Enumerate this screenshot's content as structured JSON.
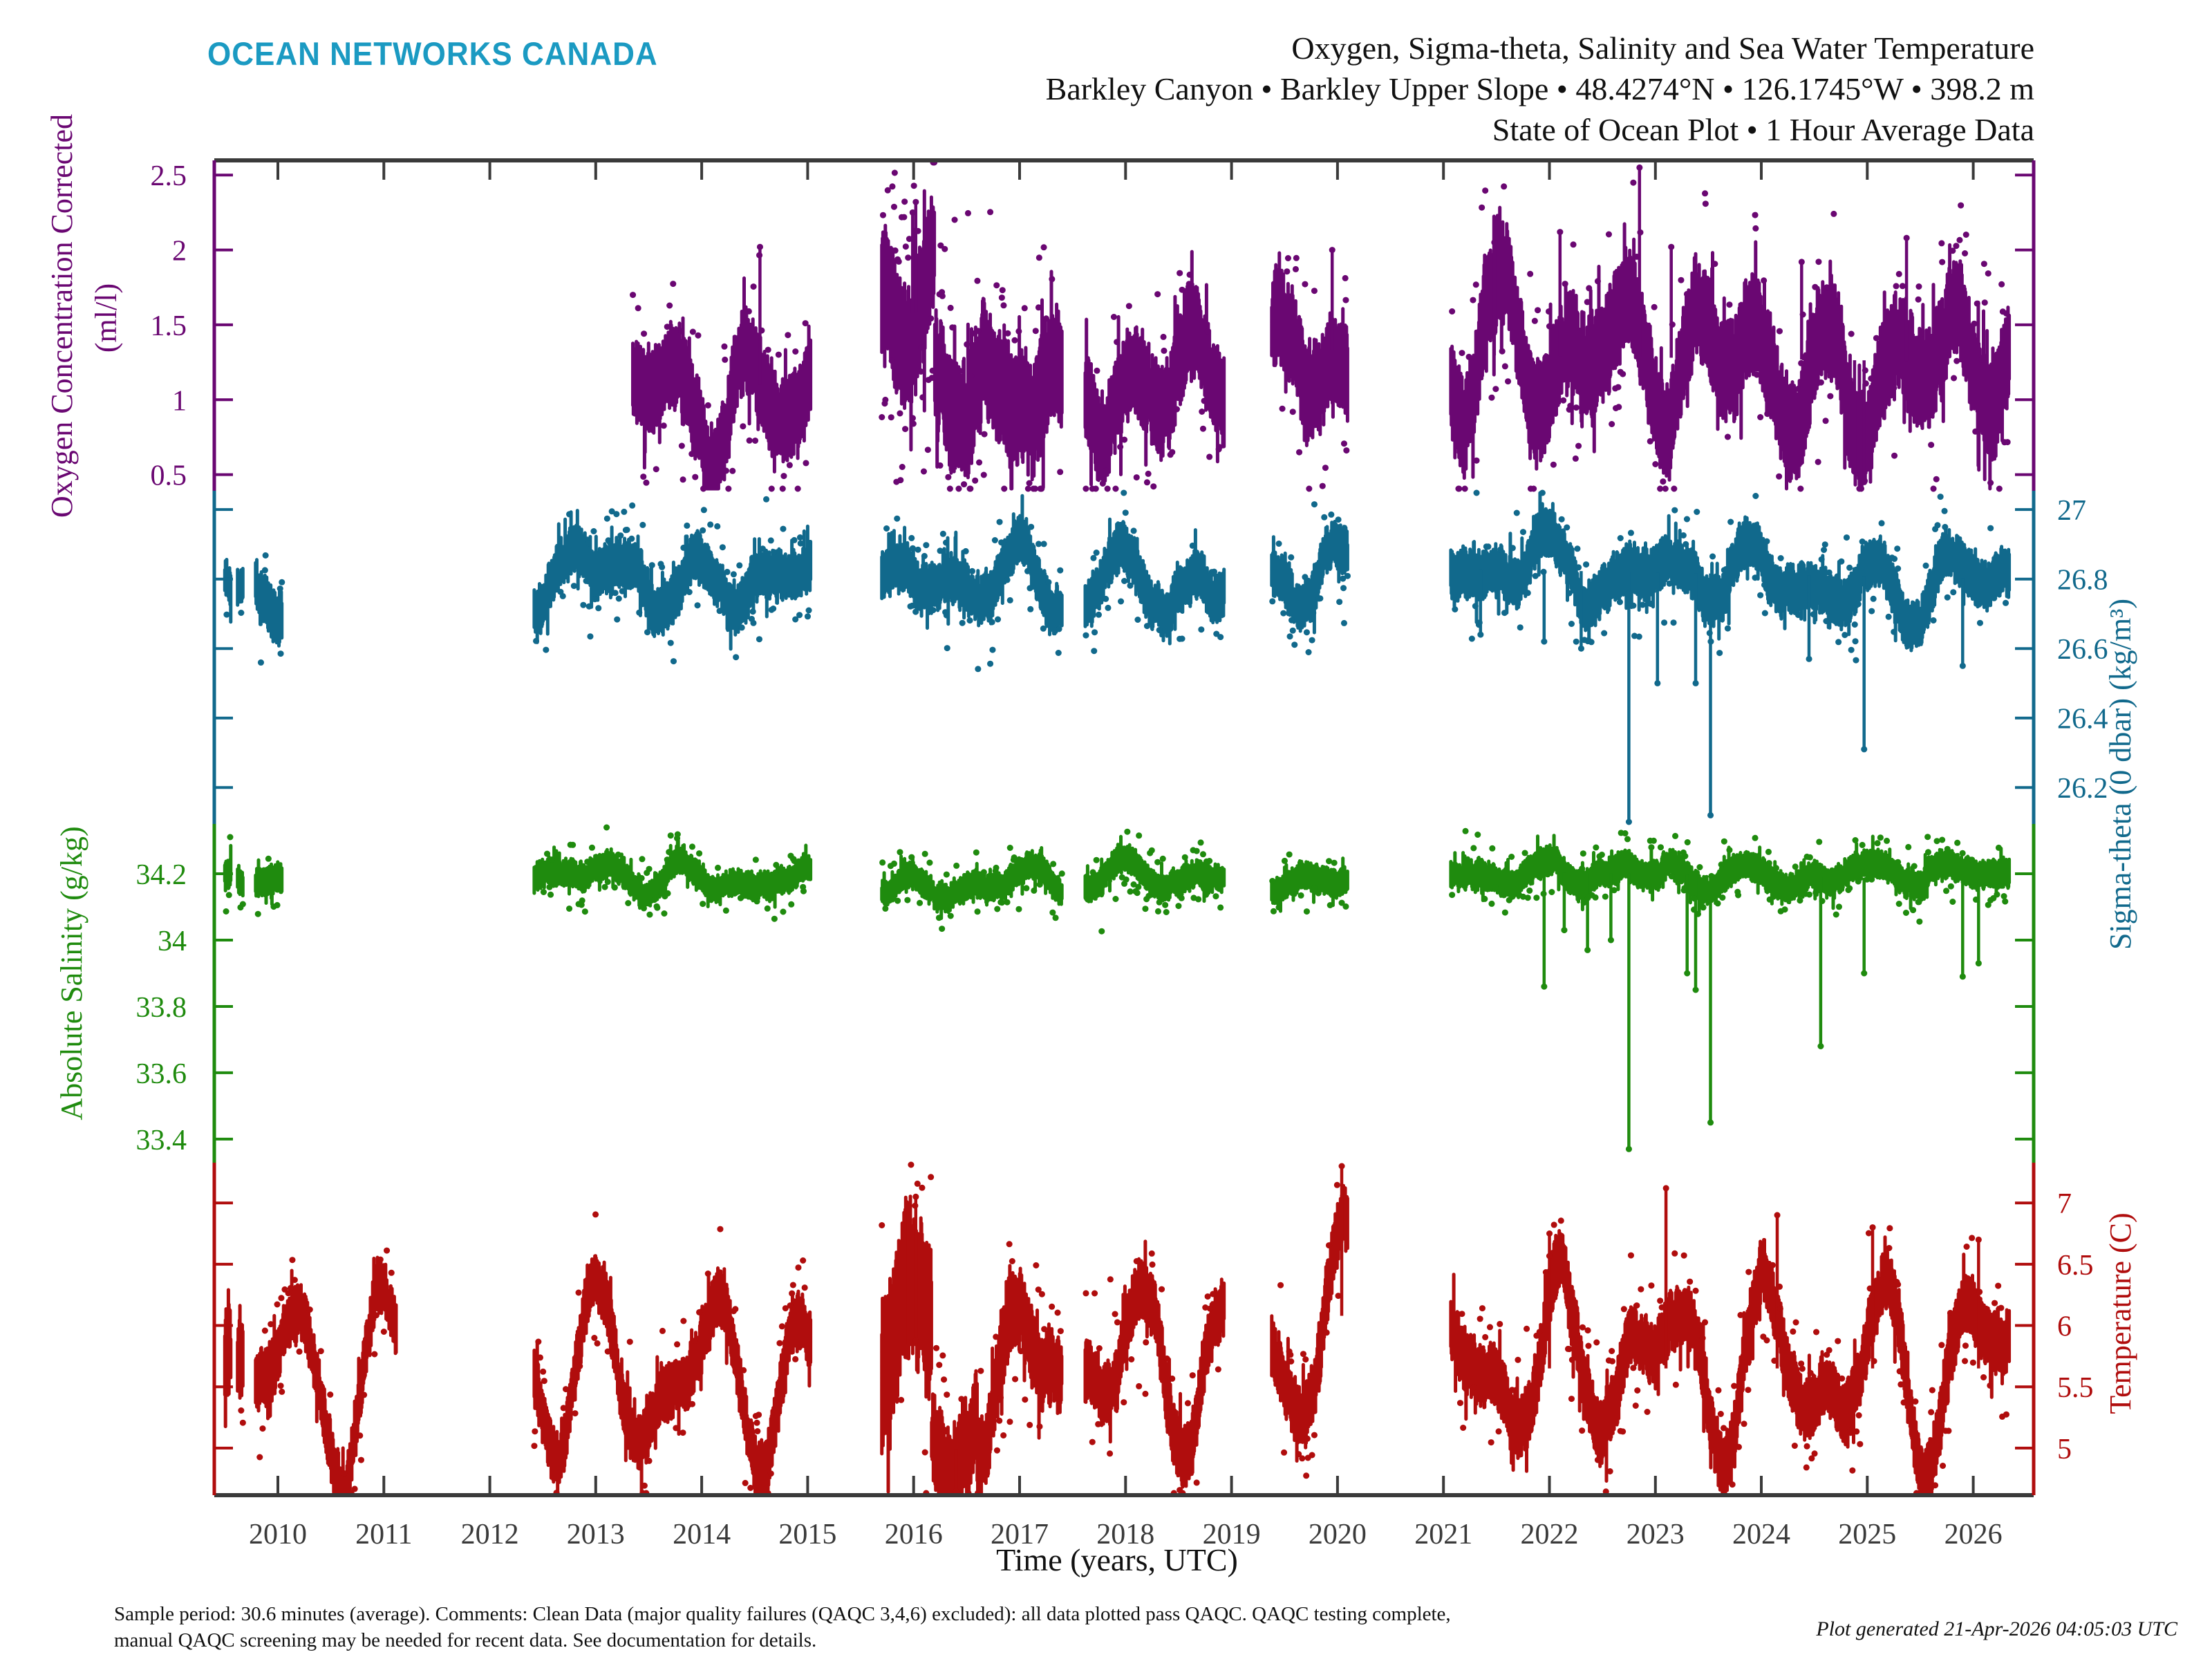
{
  "logo": "OCEAN NETWORKS CANADA",
  "title": {
    "line1": "Oxygen, Sigma-theta, Salinity and Sea Water Temperature",
    "line2": "Barkley Canyon • Barkley Upper Slope • 48.4274°N • 126.1745°W • 398.2 m",
    "line3": "State of Ocean Plot • 1 Hour Average Data"
  },
  "footnote": {
    "line1": "Sample period: 30.6 minutes (average). Comments: Clean Data (major quality failures (QAQC 3,4,6) excluded): all data plotted pass QAQC. QAQC testing complete,",
    "line2": "manual QAQC screening may be needed for recent data. See documentation for details.",
    "generated": "Plot generated 21-Apr-2026 04:05:03 UTC"
  },
  "chart_data": {
    "type": "scatter",
    "title": "Oxygen, Sigma-theta, Salinity and Sea Water Temperature",
    "xlabel": "Time (years, UTC)",
    "x_range": [
      2009.4,
      2026.57
    ],
    "x_ticks": [
      2010,
      2011,
      2012,
      2013,
      2014,
      2015,
      2016,
      2017,
      2018,
      2019,
      2020,
      2021,
      2022,
      2023,
      2024,
      2025,
      2026
    ],
    "grid": false,
    "axis_frame_color": "#3a3a3a",
    "series": [
      {
        "id": "oxygen",
        "label": "Oxygen Concentration Corrected",
        "units_label": "(ml/l)",
        "side": "left",
        "color": "#6a0772",
        "ticks": [
          2.5,
          2,
          1.5,
          1,
          0.5
        ],
        "value_range": [
          0.392,
          2.598
        ],
        "seed": 11,
        "segments": [
          {
            "t0": 2013.35,
            "t1": 2015.03,
            "base": 1.1,
            "base2": 1.1,
            "seas": 0.15,
            "ph": 0.45,
            "wob": 0.2,
            "spread": 0.22
          },
          {
            "t0": 2015.7,
            "t1": 2016.2,
            "base": 1.52,
            "base2": 1.62,
            "seas": 0.0,
            "ph": 0.0,
            "wob": 0.25,
            "spread": 0.33,
            "fringe": 0.4
          },
          {
            "t0": 2016.2,
            "t1": 2017.4,
            "base": 1.25,
            "base2": 0.95,
            "seas": 0.1,
            "ph": 0.45,
            "wob": 0.18,
            "spread": 0.3,
            "fringe": 0.25
          },
          {
            "t0": 2017.62,
            "t1": 2018.93,
            "base": 1.05,
            "base2": 1.1,
            "seas": 0.12,
            "ph": 0.45,
            "wob": 0.18,
            "spread": 0.24
          },
          {
            "t0": 2019.38,
            "t1": 2020.1,
            "base": 1.25,
            "base2": 1.35,
            "seas": 0.15,
            "ph": 0.45,
            "wob": 0.2,
            "spread": 0.26
          },
          {
            "t0": 2021.07,
            "t1": 2026.34,
            "base": 1.3,
            "base2": 1.25,
            "seas": 0.14,
            "ph": 0.45,
            "wob": 0.25,
            "spread": 0.26
          }
        ],
        "spikes": [
          {
            "t": 2022.85,
            "v": 2.55
          },
          {
            "t": 2022.1,
            "v": 2.12
          },
          {
            "t": 2021.48,
            "v": 2.05
          },
          {
            "t": 2023.15,
            "v": 2.02
          },
          {
            "t": 2025.37,
            "v": 2.08
          },
          {
            "t": 2024.38,
            "v": 1.92
          },
          {
            "t": 2019.95,
            "v": 2.0
          },
          {
            "t": 2016.02,
            "v": 2.32
          },
          {
            "t": 2015.99,
            "v": 2.25
          },
          {
            "t": 2014.55,
            "v": 2.02
          },
          {
            "t": 2024.88,
            "v": 0.52
          },
          {
            "t": 2024.97,
            "v": 0.45
          }
        ]
      },
      {
        "id": "sigma_theta",
        "label": "Sigma-theta (0 dbar) (kg/m³)",
        "units_label": "",
        "side": "right",
        "color": "#11698c",
        "ticks": [
          27,
          26.8,
          26.6,
          26.4,
          26.2
        ],
        "value_range": [
          26.095,
          27.054
        ],
        "seed": 22,
        "segments": [
          {
            "t0": 2009.5,
            "t1": 2009.56,
            "base": 26.8,
            "spread": 0.05
          },
          {
            "t0": 2009.62,
            "t1": 2009.67,
            "base": 26.78,
            "spread": 0.04
          },
          {
            "t0": 2009.79,
            "t1": 2010.04,
            "base": 26.8,
            "base2": 26.72,
            "wob": 0.04,
            "spread": 0.06
          },
          {
            "t0": 2012.42,
            "t1": 2015.03,
            "base": 26.8,
            "seas": 0.045,
            "ph": 0.9,
            "wob": 0.05,
            "spread": 0.055
          },
          {
            "t0": 2015.7,
            "t1": 2017.4,
            "base": 26.78,
            "base2": 26.8,
            "seas": 0.05,
            "ph": 0.9,
            "wob": 0.05,
            "spread": 0.055
          },
          {
            "t0": 2017.62,
            "t1": 2018.93,
            "base": 26.8,
            "seas": 0.045,
            "ph": 0.9,
            "wob": 0.05,
            "spread": 0.055
          },
          {
            "t0": 2019.38,
            "t1": 2020.1,
            "base": 26.81,
            "seas": 0.045,
            "ph": 0.9,
            "wob": 0.05,
            "spread": 0.055
          },
          {
            "t0": 2021.07,
            "t1": 2026.34,
            "base": 26.83,
            "base2": 26.8,
            "seas": 0.05,
            "ph": 0.9,
            "wob": 0.05,
            "spread": 0.055
          }
        ],
        "spikes": [
          {
            "t": 2021.35,
            "v": 26.64
          },
          {
            "t": 2021.95,
            "v": 26.62
          },
          {
            "t": 2022.3,
            "v": 26.6
          },
          {
            "t": 2022.75,
            "v": 26.1
          },
          {
            "t": 2023.02,
            "v": 26.5
          },
          {
            "t": 2023.38,
            "v": 26.5
          },
          {
            "t": 2023.52,
            "v": 26.12
          },
          {
            "t": 2024.45,
            "v": 26.57
          },
          {
            "t": 2024.97,
            "v": 26.31
          },
          {
            "t": 2025.9,
            "v": 26.55
          }
        ]
      },
      {
        "id": "salinity",
        "label": "Absolute Salinity (g/kg)",
        "units_label": "",
        "side": "left",
        "color": "#1f8b0e",
        "ticks": [
          34.2,
          34,
          33.8,
          33.6,
          33.4
        ],
        "value_range": [
          33.329,
          34.35
        ],
        "seed": 33,
        "segments": [
          {
            "t0": 2009.5,
            "t1": 2009.56,
            "base": 34.19,
            "spread": 0.035
          },
          {
            "t0": 2009.62,
            "t1": 2009.67,
            "base": 34.18,
            "spread": 0.03
          },
          {
            "t0": 2009.79,
            "t1": 2010.04,
            "base": 34.19,
            "base2": 34.16,
            "wob": 0.02,
            "spread": 0.035
          },
          {
            "t0": 2012.42,
            "t1": 2015.03,
            "base": 34.19,
            "base2": 34.17,
            "seas": 0.02,
            "ph": 0.9,
            "wob": 0.025,
            "spread": 0.032
          },
          {
            "t0": 2015.7,
            "t1": 2017.4,
            "base": 34.16,
            "base2": 34.19,
            "seas": 0.02,
            "ph": 0.9,
            "wob": 0.025,
            "spread": 0.032
          },
          {
            "t0": 2017.62,
            "t1": 2018.93,
            "base": 34.19,
            "seas": 0.02,
            "ph": 0.9,
            "wob": 0.025,
            "spread": 0.032
          },
          {
            "t0": 2019.38,
            "t1": 2020.1,
            "base": 34.18,
            "seas": 0.02,
            "ph": 0.9,
            "wob": 0.025,
            "spread": 0.032
          },
          {
            "t0": 2021.07,
            "t1": 2026.34,
            "base": 34.21,
            "base2": 34.18,
            "seas": 0.02,
            "ph": 0.9,
            "wob": 0.025,
            "spread": 0.034
          }
        ],
        "spikes": [
          {
            "t": 2021.95,
            "v": 33.86
          },
          {
            "t": 2022.14,
            "v": 34.03
          },
          {
            "t": 2022.36,
            "v": 33.97
          },
          {
            "t": 2022.58,
            "v": 34.0
          },
          {
            "t": 2022.75,
            "v": 33.37
          },
          {
            "t": 2023.3,
            "v": 33.9
          },
          {
            "t": 2023.38,
            "v": 33.85
          },
          {
            "t": 2023.52,
            "v": 33.45
          },
          {
            "t": 2024.56,
            "v": 33.68
          },
          {
            "t": 2024.97,
            "v": 33.9
          },
          {
            "t": 2025.9,
            "v": 33.89
          },
          {
            "t": 2026.05,
            "v": 33.93
          }
        ]
      },
      {
        "id": "temperature",
        "label": "Temperature (C)",
        "units_label": "",
        "side": "right",
        "color": "#b00d0d",
        "ticks": [
          7,
          6.5,
          6,
          5.5,
          5
        ],
        "value_range": [
          4.616,
          7.328
        ],
        "seed": 44,
        "segments": [
          {
            "t0": 2009.5,
            "t1": 2009.56,
            "base": 5.8,
            "spread": 0.3
          },
          {
            "t0": 2009.62,
            "t1": 2009.67,
            "base": 5.7,
            "spread": 0.25
          },
          {
            "t0": 2009.79,
            "t1": 2011.12,
            "base": 5.55,
            "seas": 0.55,
            "ph": 0.02,
            "wob": 0.3,
            "spread": 0.18
          },
          {
            "t0": 2012.42,
            "t1": 2015.03,
            "base": 5.6,
            "seas": 0.45,
            "ph": 0.0,
            "wob": 0.3,
            "spread": 0.18
          },
          {
            "t0": 2015.7,
            "t1": 2016.17,
            "base": 5.9,
            "base2": 5.8,
            "seas": 0.3,
            "ph": 0.0,
            "wob": 0.3,
            "spread": 0.5
          },
          {
            "t0": 2016.17,
            "t1": 2016.6,
            "base": 5.1,
            "base2": 4.9,
            "wob": 0.15,
            "spread": 0.3
          },
          {
            "t0": 2016.6,
            "t1": 2017.4,
            "base": 5.55,
            "base2": 5.7,
            "seas": 0.4,
            "ph": 0.0,
            "wob": 0.25,
            "spread": 0.25
          },
          {
            "t0": 2017.62,
            "t1": 2018.93,
            "base": 5.75,
            "seas": 0.45,
            "ph": 0.0,
            "wob": 0.3,
            "spread": 0.2
          },
          {
            "t0": 2019.38,
            "t1": 2020.1,
            "base": 5.85,
            "base2": 6.1,
            "seas": 0.5,
            "ph": 0.0,
            "wob": 0.25,
            "spread": 0.2
          },
          {
            "t0": 2021.07,
            "t1": 2026.34,
            "base": 5.65,
            "seas": 0.5,
            "ph": 0.02,
            "wob": 0.3,
            "spread": 0.2
          }
        ],
        "spikes": [
          {
            "t": 2020.04,
            "v": 7.3
          },
          {
            "t": 2023.1,
            "v": 7.12
          },
          {
            "t": 2016.02,
            "v": 7.05
          },
          {
            "t": 2015.95,
            "v": 6.95
          },
          {
            "t": 2016.4,
            "v": 4.65
          },
          {
            "t": 2024.15,
            "v": 6.9
          },
          {
            "t": 2022.0,
            "v": 6.75
          },
          {
            "t": 2025.05,
            "v": 6.8
          },
          {
            "t": 2026.05,
            "v": 6.7
          }
        ]
      }
    ]
  }
}
